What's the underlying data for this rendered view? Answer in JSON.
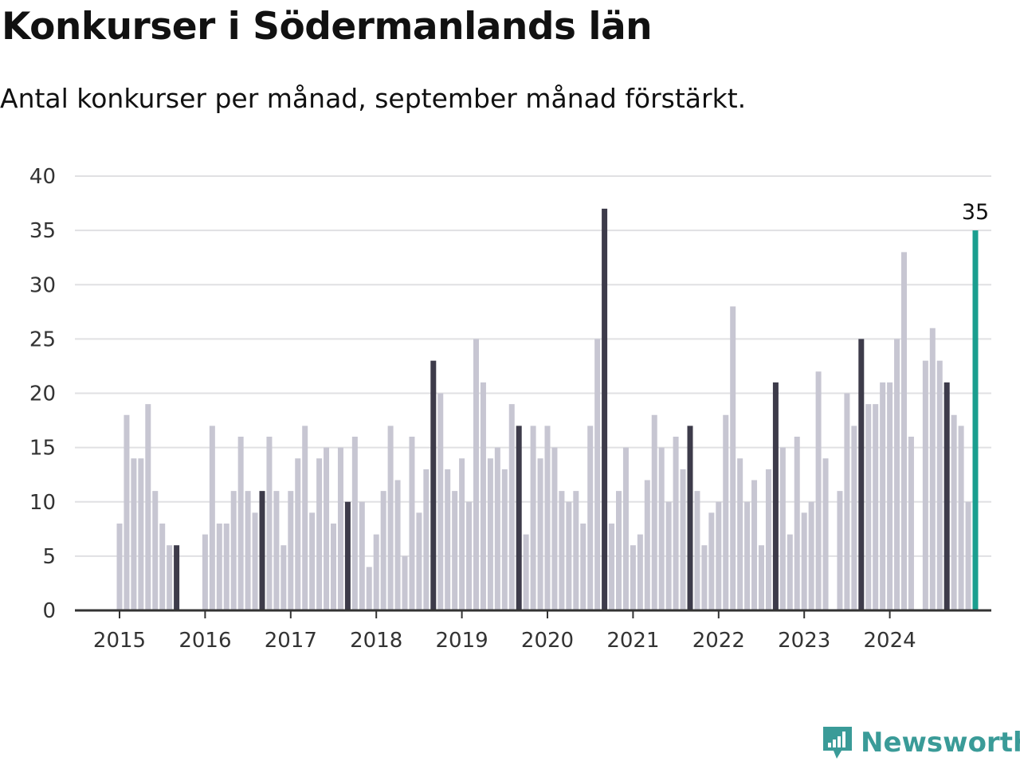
{
  "title": "Konkurser i Södermanlands län",
  "subtitle": "Antal konkurser per månad, september månad förstärkt.",
  "brand": "Newsworthy",
  "colors": {
    "bar": "#c7c6d2",
    "september": "#3d3b4a",
    "latest": "#1a9e8f",
    "grid": "#e0e0e3",
    "axis": "#333333",
    "brand": "#3a9b98"
  },
  "chart_data": {
    "type": "bar",
    "ylim": [
      0,
      40
    ],
    "yticks": [
      0,
      5,
      10,
      15,
      20,
      25,
      30,
      35,
      40
    ],
    "xticks": [
      "2015",
      "2016",
      "2017",
      "2018",
      "2019",
      "2020",
      "2021",
      "2022",
      "2023",
      "2024"
    ],
    "start": "2015-01",
    "highlight_month": "september",
    "latest_label": "35",
    "values": [
      8,
      18,
      14,
      14,
      19,
      11,
      8,
      6,
      6,
      null,
      null,
      null,
      7,
      17,
      8,
      8,
      11,
      16,
      11,
      9,
      11,
      16,
      11,
      6,
      11,
      14,
      17,
      9,
      14,
      15,
      8,
      15,
      10,
      16,
      10,
      4,
      7,
      11,
      17,
      12,
      5,
      16,
      9,
      13,
      23,
      20,
      13,
      11,
      14,
      10,
      25,
      21,
      14,
      15,
      13,
      19,
      17,
      7,
      17,
      14,
      17,
      15,
      11,
      10,
      11,
      8,
      17,
      25,
      37,
      8,
      11,
      15,
      6,
      7,
      12,
      18,
      15,
      10,
      16,
      13,
      17,
      11,
      6,
      9,
      10,
      18,
      28,
      14,
      10,
      12,
      6,
      13,
      21,
      15,
      7,
      16,
      9,
      10,
      22,
      14,
      null,
      11,
      20,
      17,
      25,
      19,
      19,
      21,
      21,
      25,
      33,
      16,
      null,
      23,
      26,
      23,
      21,
      18,
      17,
      10,
      35
    ]
  }
}
